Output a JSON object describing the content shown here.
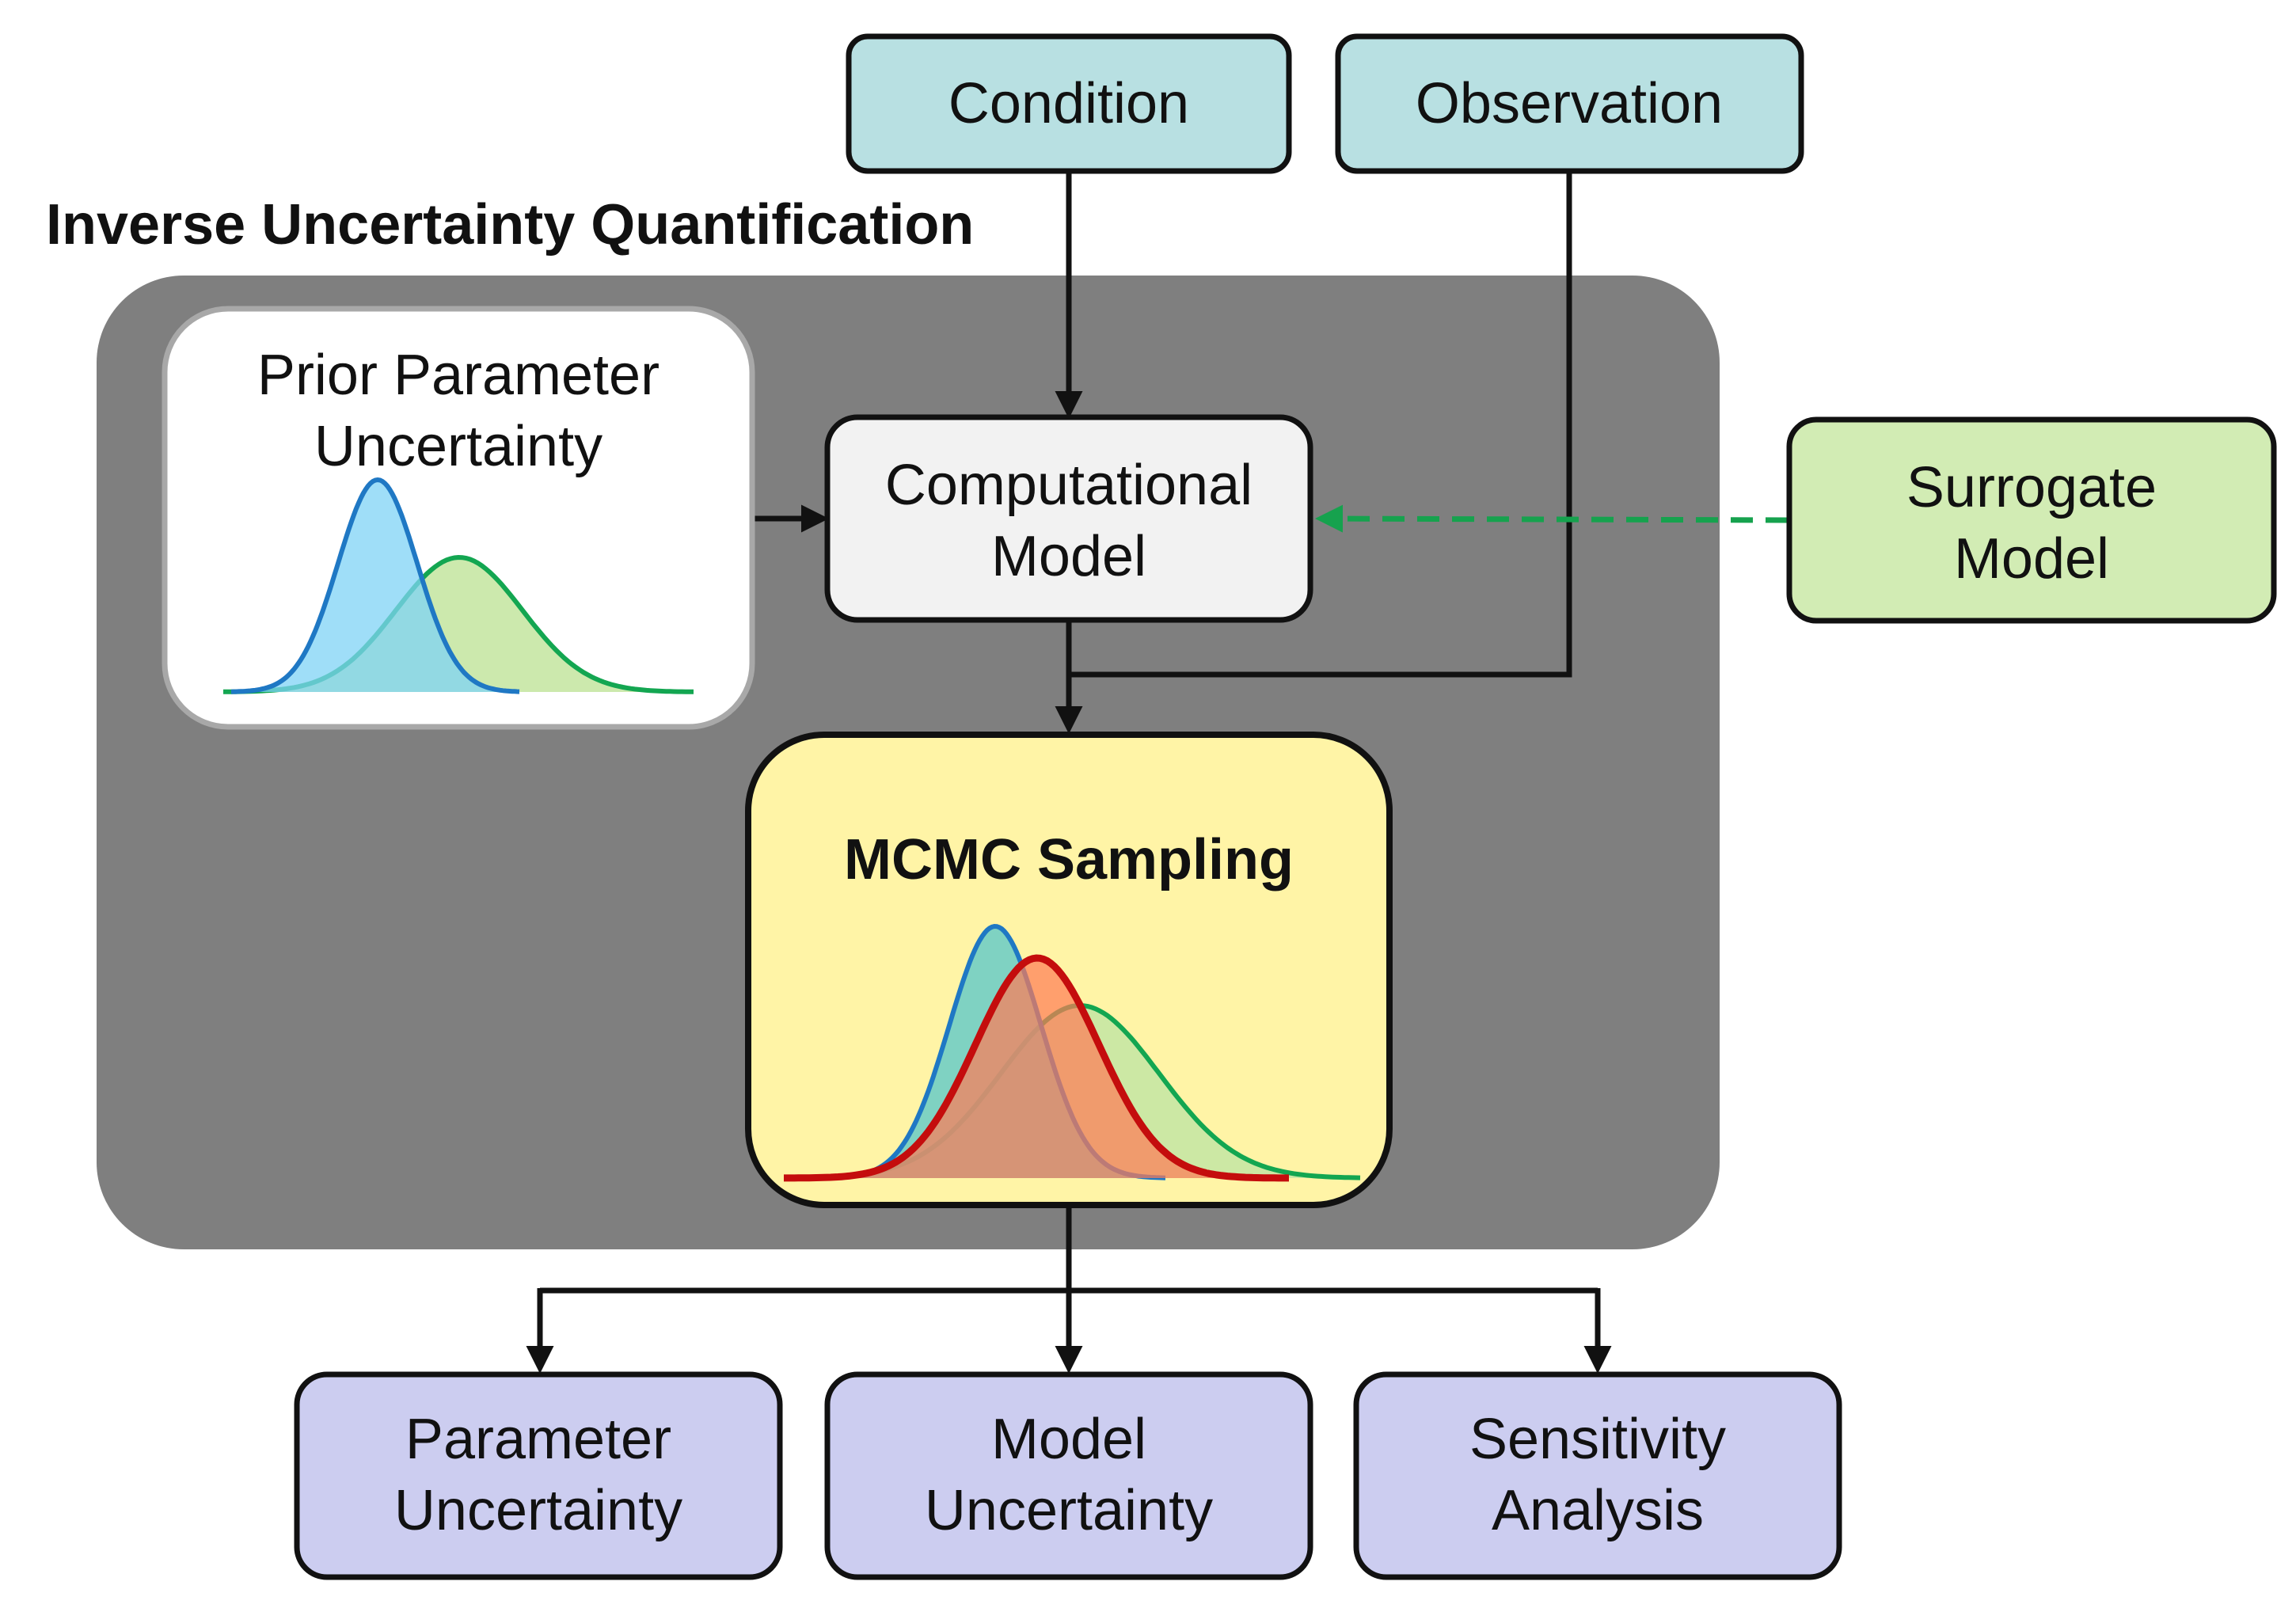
{
  "title": "Inverse Uncertainty Quantification",
  "nodes": {
    "condition": {
      "label": "Condition"
    },
    "observation": {
      "label": "Observation"
    },
    "prior": {
      "line1": "Prior Parameter",
      "line2": "Uncertainty"
    },
    "computational": {
      "line1": "Computational",
      "line2": "Model"
    },
    "surrogate": {
      "line1": "Surrogate",
      "line2": "Model"
    },
    "mcmc": {
      "label": "MCMC Sampling"
    },
    "parameter_uncertainty": {
      "line1": "Parameter",
      "line2": "Uncertainty"
    },
    "model_uncertainty": {
      "line1": "Model",
      "line2": "Uncertainty"
    },
    "sensitivity_analysis": {
      "line1": "Sensitivity",
      "line2": "Analysis"
    }
  },
  "colors": {
    "input_box": "#b8e0e2",
    "computational_box": "#f2f2f2",
    "surrogate_box": "#d2ecb4",
    "mcmc_box": "#fff4a6",
    "output_box": "#cccdf0",
    "prior_border": "#a8a8a8",
    "dashed_region": "#7f7f7f",
    "surrogate_arrow": "#16a24e",
    "curve_blue": "#1f78c4",
    "curve_blue_fill": "#7fd3f6",
    "curve_green": "#13a651",
    "curve_green_fill": "#c6e7a4",
    "curve_red": "#c40d0d",
    "curve_red_fill": "#ff7a55"
  }
}
